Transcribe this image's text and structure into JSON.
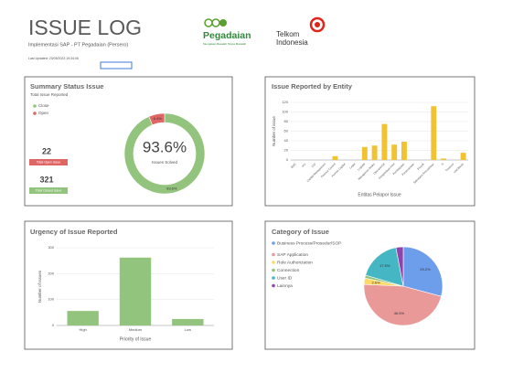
{
  "header": {
    "title": "ISSUE LOG",
    "subtitle": "Implementasi SAP - PT Pegadaian (Persero)",
    "updated": "Last Updated: 23/05/2023 19:34:06"
  },
  "logos": {
    "pegadaian": "Pegadaian",
    "tagline": "Mengatasi Masalah Tanpa Masalah",
    "telkom_line1": "Telkom",
    "telkom_line2": "Indonesia"
  },
  "chart_data": [
    {
      "type": "donut",
      "title": "Summary Status Issue",
      "subtitle": "Total Issue Reported",
      "categories": [
        "Close",
        "Open"
      ],
      "colors": [
        "#93c47d",
        "#e06666"
      ],
      "values": [
        93.6,
        6.4
      ],
      "value_labels": [
        "93.6%",
        "6.4%"
      ],
      "center_label": "Issues Solved",
      "cards": [
        {
          "value": 22,
          "label": "Total Open Issue",
          "color": "#e06666"
        },
        {
          "value": 321,
          "label": "Total Closed Issue",
          "color": "#93c47d"
        }
      ]
    },
    {
      "type": "bar",
      "title": "Issue Reported by Entity",
      "x_label": "Entitas Pelapor Issue",
      "y_label": "Number of issue",
      "categories": [
        "BOD",
        "IAU",
        "CIO",
        "Capital Management",
        "Finance Control",
        "Human Capital",
        "Legal",
        "Logistik",
        "Manajemen Risiko",
        "Operasional",
        "Pengelolaan Aset",
        "Pembiayaan",
        "Perencanaan",
        "Proyek",
        "Sekretaris Perusahaan",
        "TI",
        "Treasury",
        "Unit Bisnis"
      ],
      "values": [
        0,
        0,
        0,
        0,
        8,
        0,
        0,
        27,
        30,
        75,
        32,
        38,
        0,
        0,
        112,
        3,
        0,
        15
      ],
      "color": "#f1c232",
      "ylim": [
        0,
        120
      ],
      "yticks": [
        0,
        20,
        40,
        60,
        80,
        100,
        120
      ],
      "grid": true
    },
    {
      "type": "bar",
      "title": "Urgency of Issue Reported",
      "x_label": "Priority of Issue",
      "y_label": "Number of Issues",
      "categories": [
        "High",
        "Medium",
        "Low"
      ],
      "values": [
        56,
        262,
        25
      ],
      "color": "#93c47d",
      "ylim": [
        0,
        300
      ],
      "yticks": [
        0,
        100,
        200,
        300
      ],
      "grid": true
    },
    {
      "type": "pie",
      "title": "Category of Issue",
      "categories": [
        "Business Process/Prosedur/SOP",
        "SAP Application",
        "Role Authorization",
        "Connection",
        "User ID",
        "Lainnya"
      ],
      "colors": [
        "#6d9eeb",
        "#ea9999",
        "#ffd966",
        "#93c47d",
        "#45b6c4",
        "#8e44ad"
      ],
      "values": [
        29.2,
        46.5,
        2.6,
        1.2,
        17.5,
        3.0
      ],
      "value_labels": [
        "29.2%",
        "46.5%",
        "2.6%",
        null,
        "17.5%",
        null
      ]
    }
  ]
}
